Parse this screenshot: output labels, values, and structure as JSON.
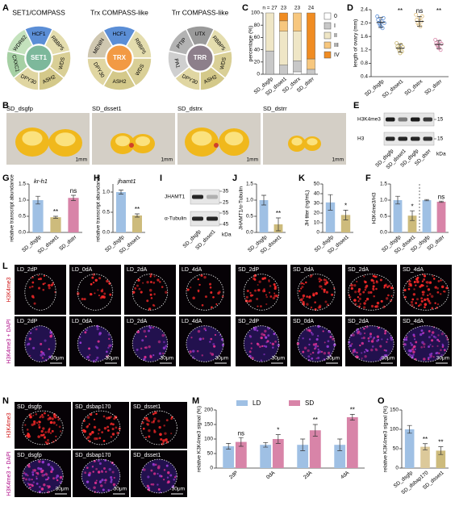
{
  "panel_labels": [
    "A",
    "B",
    "C",
    "D",
    "E",
    "G",
    "H",
    "I",
    "J",
    "K",
    "F",
    "L",
    "N",
    "M",
    "O"
  ],
  "diagrams": [
    {
      "title": "SET1/COMPASS",
      "center": "SET1",
      "center_color": "#7db89b",
      "segments": [
        {
          "name": "HCF1",
          "color": "#5b8ed6"
        },
        {
          "name": "RBBP5",
          "color": "#e4ddae"
        },
        {
          "name": "WDS",
          "color": "#d9cf96"
        },
        {
          "name": "ASH2",
          "color": "#d4c98a"
        },
        {
          "name": "DPY30",
          "color": "#e0d6a2"
        },
        {
          "name": "CXXC1",
          "color": "#a6d0a4"
        },
        {
          "name": "WDR82",
          "color": "#c4e2bd"
        }
      ]
    },
    {
      "title": "Trx COMPASS-like",
      "center": "TRX",
      "center_color": "#f29a44",
      "segments": [
        {
          "name": "HCF1",
          "color": "#5b8ed6"
        },
        {
          "name": "RBBP5",
          "color": "#e4ddae"
        },
        {
          "name": "WDS",
          "color": "#d9cf96"
        },
        {
          "name": "ASH2",
          "color": "#d4c98a"
        },
        {
          "name": "DPY30",
          "color": "#e0d6a2"
        },
        {
          "name": "MENIN",
          "color": "#cfc7b0"
        }
      ]
    },
    {
      "title": "Trr COMPASS-like",
      "center": "TRR",
      "center_color": "#8d7f8b",
      "segments": [
        {
          "name": "UTX",
          "color": "#9a9a9a"
        },
        {
          "name": "RBBP5",
          "color": "#e4ddae"
        },
        {
          "name": "WDS",
          "color": "#d9cf96"
        },
        {
          "name": "ASH2",
          "color": "#d4c98a"
        },
        {
          "name": "DPY30",
          "color": "#e0d6a2"
        },
        {
          "name": "PA1",
          "color": "#cfcfcf"
        },
        {
          "name": "PTIP",
          "color": "#b3b3b3"
        }
      ]
    }
  ],
  "ovary_images": [
    {
      "label": "SD_dsgfp",
      "scale": "1mm"
    },
    {
      "label": "SD_dsset1",
      "scale": "1mm"
    },
    {
      "label": "SD_dstrx",
      "scale": "1mm"
    },
    {
      "label": "SD_dstrr",
      "scale": "1mm"
    }
  ],
  "blot_E": {
    "rows": [
      {
        "label": "H3K4me3",
        "markers": [
          "15"
        ]
      },
      {
        "label": "H3",
        "markers": [
          "15"
        ]
      }
    ],
    "lanes": [
      "SD_dsgfp",
      "SD_dsset1",
      "SD_dsgfp",
      "SD_dstrr"
    ],
    "unit": "kDa"
  },
  "blot_I": {
    "rows": [
      {
        "label": "JHAMT1",
        "markers": [
          "35",
          "25"
        ]
      },
      {
        "label": "α-Tubulin",
        "markers": [
          "55",
          "45"
        ]
      }
    ],
    "lanes": [
      "SD_dsgfp",
      "SD_dsset1"
    ],
    "unit": "kDa"
  },
  "micrographs_L": {
    "row_labels": [
      "H3K4me3",
      "H3K4me3 + DAPI"
    ],
    "panels": [
      {
        "label": "LD_2dP",
        "scale": "30μm"
      },
      {
        "label": "LD_0dA",
        "scale": "30μm"
      },
      {
        "label": "LD_2dA",
        "scale": "30μm"
      },
      {
        "label": "LD_4dA",
        "scale": "30μm"
      },
      {
        "label": "SD_2dP",
        "scale": "30μm"
      },
      {
        "label": "SD_0dA",
        "scale": "30μm"
      },
      {
        "label": "SD_2dA",
        "scale": "30μm"
      },
      {
        "label": "SD_4dA",
        "scale": "30μm"
      }
    ]
  },
  "micrographs_N": {
    "row_labels": [
      "H3K4me3",
      "H3K4me3 + DAPI"
    ],
    "panels": [
      {
        "label": "SD_dsgfp",
        "scale": "30μm"
      },
      {
        "label": "SD_dsbap170",
        "scale": "30μm"
      },
      {
        "label": "SD_dsset1",
        "scale": "30μm"
      }
    ]
  },
  "chart_data": [
    {
      "type": "stacked_bar",
      "ylabel": "percentage (%)",
      "categories": [
        "SD_dsgfp",
        "SD_dsset1",
        "SD_dstrx",
        "SD_dstrr"
      ],
      "annotations": [
        "n = 27",
        "23",
        "23",
        "24"
      ],
      "series": [
        {
          "name": "0",
          "color": "#ffffff",
          "values": [
            0,
            0,
            4,
            0
          ]
        },
        {
          "name": "I",
          "color": "#c8c8c8",
          "values": [
            38,
            15,
            18,
            8
          ]
        },
        {
          "name": "II",
          "color": "#efe6c6",
          "values": [
            62,
            55,
            48,
            0
          ]
        },
        {
          "name": "III",
          "color": "#f7c77e",
          "values": [
            0,
            17,
            30,
            17
          ]
        },
        {
          "name": "IV",
          "color": "#f08c22",
          "values": [
            0,
            13,
            0,
            75
          ]
        }
      ],
      "ylim": [
        0,
        100
      ],
      "yticks": [
        0,
        20,
        40,
        60,
        80,
        100
      ]
    },
    {
      "type": "dot",
      "ylabel": "length of ovary (mm)",
      "categories": [
        "SD_dsgfp",
        "SD_dsset1",
        "SD_dstrx",
        "SD_dstrr"
      ],
      "colors": [
        "#5b8ed6",
        "#c8b46a",
        "#e0be7a",
        "#d884a8"
      ],
      "values": [
        2.02,
        1.25,
        2.05,
        1.36
      ],
      "errors": [
        0.15,
        0.12,
        0.15,
        0.12
      ],
      "points": [
        [
          2.2,
          2.1,
          2.0,
          1.95,
          1.9,
          2.05,
          1.85,
          2.15,
          2.0
        ],
        [
          1.4,
          1.3,
          1.25,
          1.2,
          1.1,
          1.35,
          1.15,
          1.28
        ],
        [
          2.25,
          2.1,
          2.0,
          1.95,
          2.15,
          1.9,
          2.05,
          2.2
        ],
        [
          1.5,
          1.4,
          1.35,
          1.3,
          1.25,
          1.45,
          1.2,
          1.38
        ]
      ],
      "significance": [
        null,
        "**",
        "ns",
        "**"
      ],
      "ylim": [
        0.4,
        2.4
      ],
      "yticks": [
        0.4,
        0.8,
        1.2,
        1.6,
        {
          "value": 2,
          "label": "2.0"
        },
        2.4
      ]
    },
    {
      "type": "bar",
      "title": "kr-h1",
      "ylabel": "relative transcript abundance",
      "categories": [
        "SD_dsgfp",
        "SD_dsset1",
        "SD_dstrr"
      ],
      "colors": [
        "#9fc0e4",
        "#cdbb7c",
        "#d884a8"
      ],
      "values": [
        1.0,
        0.47,
        1.07
      ],
      "errors": [
        0.12,
        0.03,
        0.08
      ],
      "significance": [
        null,
        "**",
        "ns"
      ],
      "ylim": [
        0,
        1.5
      ],
      "yticks": [
        {
          "value": 0,
          "label": "0.0"
        },
        0.5,
        {
          "value": 1,
          "label": "1.0"
        },
        1.5
      ]
    },
    {
      "type": "bar",
      "title": "jhamt1",
      "ylabel": "relative transcript abundance",
      "categories": [
        "SD_dsgfp",
        "SD_dsset1"
      ],
      "colors": [
        "#9fc0e4",
        "#cdbb7c"
      ],
      "values": [
        1.0,
        0.42
      ],
      "errors": [
        0.05,
        0.04
      ],
      "significance": [
        null,
        "**"
      ],
      "ylim": [
        0,
        1.2
      ],
      "yticks": [
        {
          "value": 0,
          "label": "0.0"
        },
        0.5,
        {
          "value": 1,
          "label": "1.0"
        }
      ]
    },
    {
      "type": "bar",
      "ylabel": "JHAMT1/α-Tubulin",
      "categories": [
        "SD_dsgfp",
        "SD_dsset1"
      ],
      "colors": [
        "#9fc0e4",
        "#cdbb7c"
      ],
      "values": [
        1.0,
        0.25
      ],
      "errors": [
        0.15,
        0.2
      ],
      "significance": [
        null,
        "**"
      ],
      "ylim": [
        0,
        1.5
      ],
      "yticks": [
        {
          "value": 0,
          "label": "0.0"
        },
        0.5,
        {
          "value": 1,
          "label": "1.0"
        },
        1.5
      ]
    },
    {
      "type": "bar",
      "ylabel": "JH titer (ng/mL)",
      "categories": [
        "SD_dsgfp",
        "SD_dsset1"
      ],
      "colors": [
        "#9fc0e4",
        "#cdbb7c"
      ],
      "values": [
        31,
        18
      ],
      "errors": [
        8,
        5
      ],
      "significance": [
        null,
        "*"
      ],
      "ylim": [
        0,
        50
      ],
      "yticks": [
        0,
        10,
        20,
        30,
        40,
        50
      ]
    },
    {
      "type": "bar",
      "ylabel": "H3K4me3/H3",
      "categories": [
        "SD_dsgfp",
        "SD_dsset1",
        "SD_dsgfp",
        "SD_dstrr"
      ],
      "colors": [
        "#9fc0e4",
        "#cdbb7c",
        "#9fc0e4",
        "#d884a8"
      ],
      "values": [
        1.0,
        0.52,
        1.0,
        0.95
      ],
      "errors": [
        0.12,
        0.15,
        0.02,
        0.02
      ],
      "significance": [
        null,
        "*",
        null,
        "ns"
      ],
      "ylim": [
        0,
        1.5
      ],
      "yticks": [
        {
          "value": 0,
          "label": "0.0"
        },
        0.5,
        {
          "value": 1,
          "label": "1.0"
        },
        1.5
      ]
    },
    {
      "type": "grouped_bar",
      "ylabel": "relative K3K4me3 signal (%)",
      "categories": [
        "2dP",
        "0dA",
        "2dA",
        "4dA"
      ],
      "series": [
        {
          "name": "LD",
          "color": "#9fc0e4",
          "values": [
            75,
            80,
            80,
            80
          ],
          "errors": [
            10,
            8,
            20,
            20
          ]
        },
        {
          "name": "SD",
          "color": "#d884a8",
          "values": [
            90,
            100,
            130,
            175
          ],
          "errors": [
            15,
            15,
            20,
            10
          ]
        }
      ],
      "significance": [
        "ns",
        "*",
        "**",
        "**"
      ],
      "ylim": [
        0,
        200
      ],
      "yticks": [
        0,
        50,
        100,
        150,
        200
      ]
    },
    {
      "type": "bar",
      "ylabel": "relative K3K4me3 signal (%)",
      "categories": [
        "SD_dsgfp",
        "SD_dsbap170",
        "SD_dsset1"
      ],
      "colors": [
        "#9fc0e4",
        "#dcc99a",
        "#cdbb7c"
      ],
      "values": [
        100,
        55,
        45
      ],
      "errors": [
        10,
        8,
        10
      ],
      "significance": [
        null,
        "**",
        "**"
      ],
      "ylim": [
        0,
        150
      ],
      "yticks": [
        0,
        50,
        100,
        150
      ]
    }
  ]
}
